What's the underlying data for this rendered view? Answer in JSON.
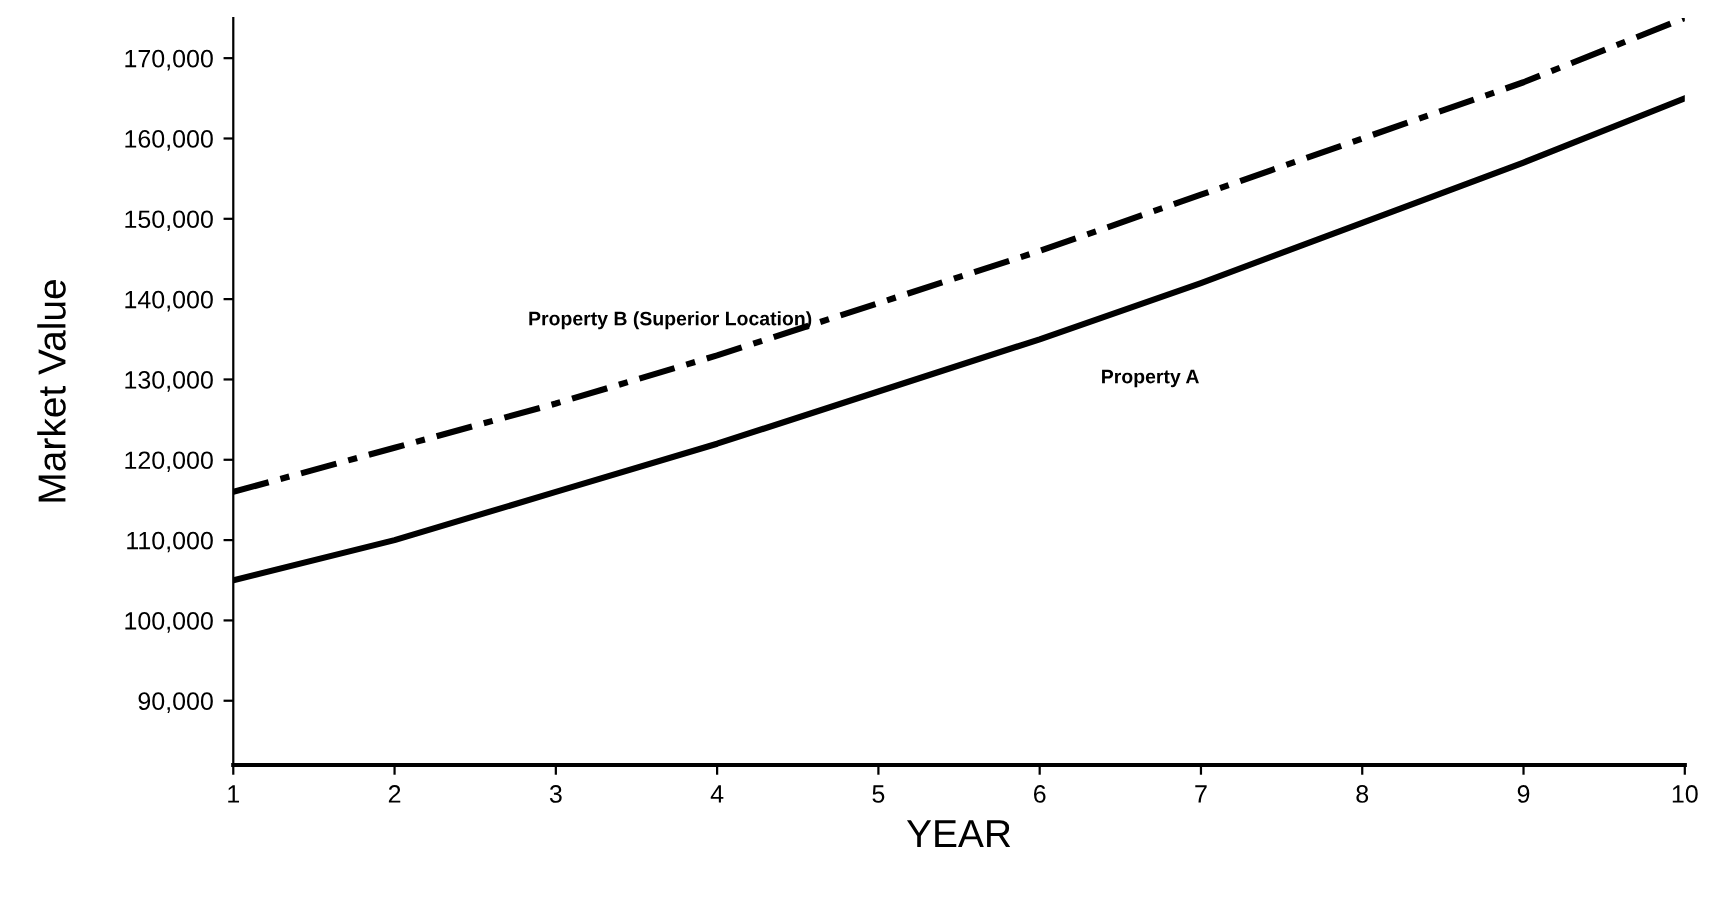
{
  "chart_data": {
    "type": "line",
    "xlabel": "YEAR",
    "ylabel": "Market Value",
    "x": [
      1,
      2,
      3,
      4,
      5,
      6,
      7,
      8,
      9,
      10
    ],
    "series": [
      {
        "name": "Property A",
        "color": "#000000",
        "line_style": "solid",
        "values": [
          105000,
          110000,
          116000,
          122000,
          128500,
          135000,
          142000,
          149500,
          157000,
          165000
        ]
      },
      {
        "name": "Property B (Superior Location)",
        "color": "#000000",
        "line_style": "dashdot",
        "values": [
          116000,
          121500,
          127000,
          133000,
          139500,
          146000,
          153000,
          160000,
          167000,
          175000
        ]
      }
    ],
    "xlim": [
      1,
      10
    ],
    "xticks": [
      1,
      2,
      3,
      4,
      5,
      6,
      7,
      8,
      9,
      10
    ],
    "ylim": [
      82000,
      175000
    ],
    "yticks": [
      {
        "value": 90000,
        "label": "90,000"
      },
      {
        "value": 100000,
        "label": "100,000"
      },
      {
        "value": 110000,
        "label": "110,000"
      },
      {
        "value": 120000,
        "label": "120,000"
      },
      {
        "value": 130000,
        "label": "130,000"
      },
      {
        "value": 140000,
        "label": "140,000"
      },
      {
        "value": 150000,
        "label": "150,000"
      },
      {
        "value": 160000,
        "label": "160,000"
      },
      {
        "value": 170000,
        "label": "170,000"
      }
    ],
    "grid": false,
    "legend": false,
    "marker": "none"
  }
}
